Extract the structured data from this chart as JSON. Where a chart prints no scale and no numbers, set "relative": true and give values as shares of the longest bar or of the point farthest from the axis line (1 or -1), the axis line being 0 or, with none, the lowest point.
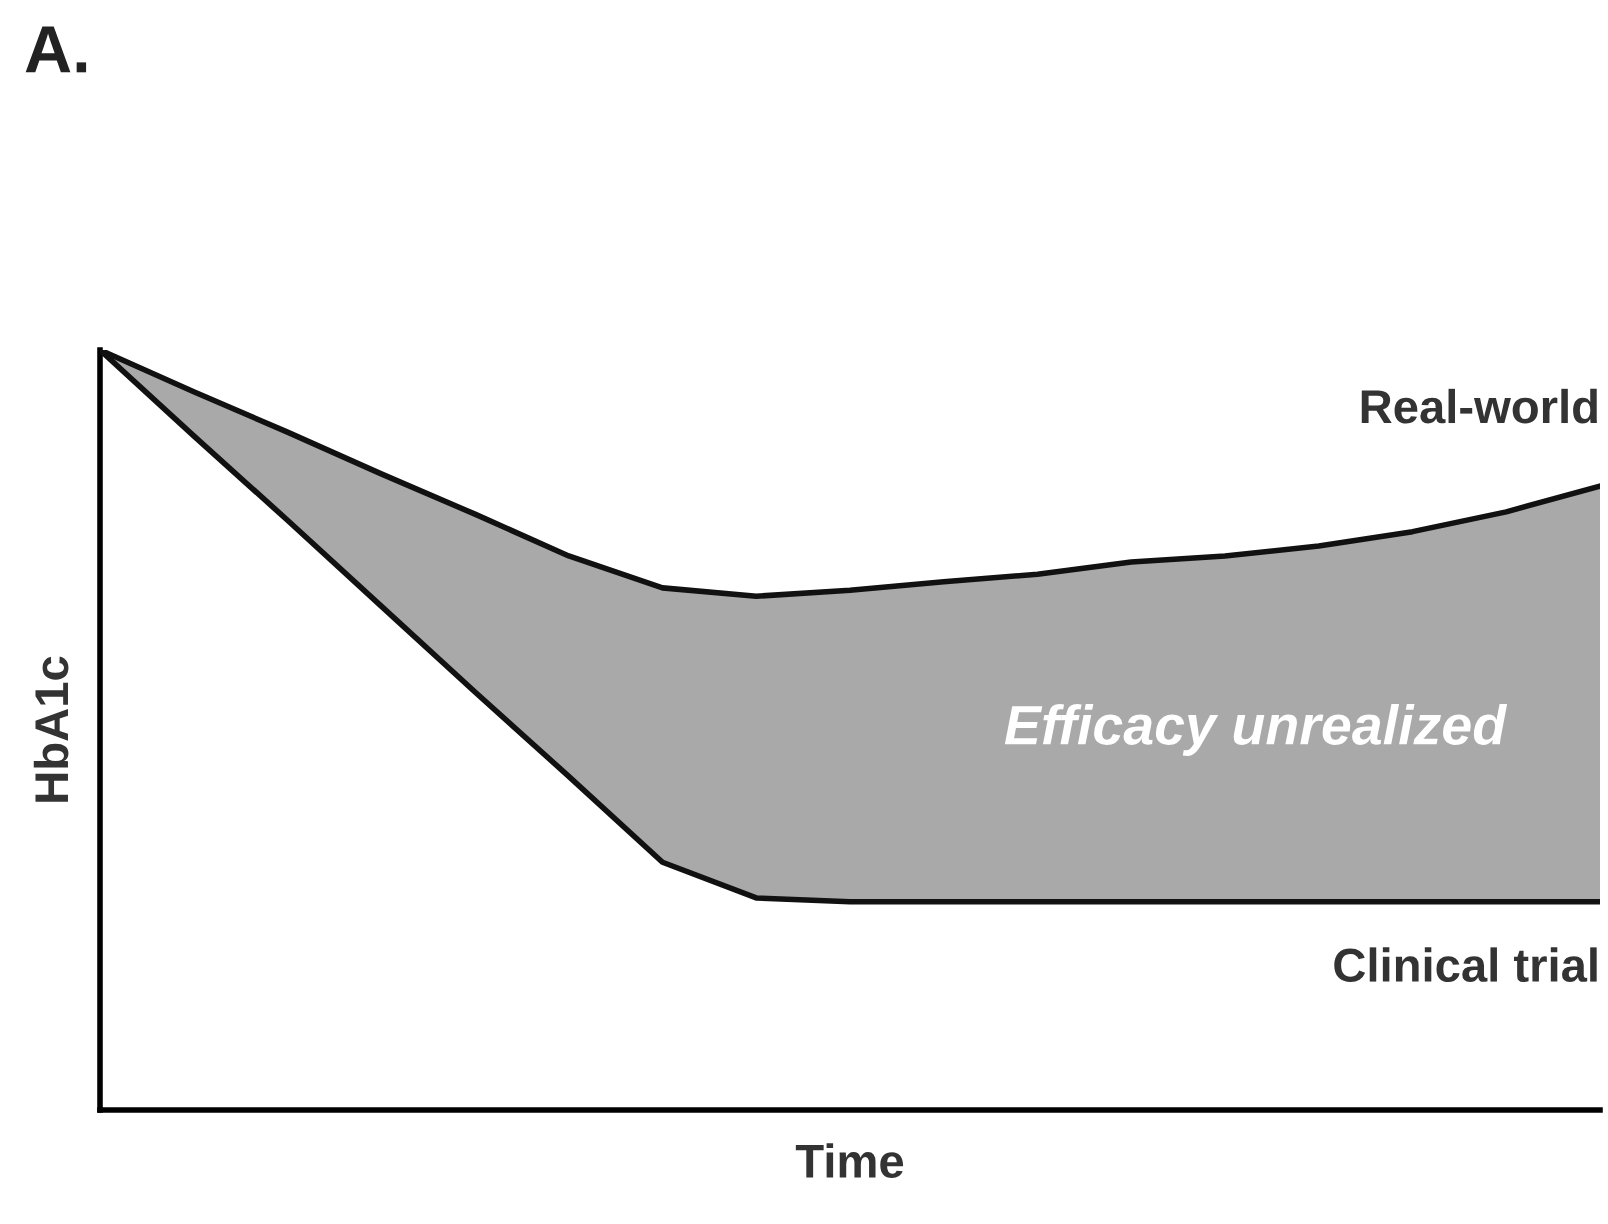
{
  "chart_data": {
    "type": "area",
    "title": "A.",
    "xlabel": "Time",
    "ylabel": "HbA1c",
    "relative": true,
    "stacked": true,
    "categories": [
      null,
      null,
      null,
      null,
      null,
      null,
      null,
      null,
      null,
      null,
      null,
      null,
      null,
      null,
      null,
      null,
      null
    ],
    "series": [
      {
        "name": "Clinical trial",
        "color": "#ffffff",
        "values": [
          1,
          0.887,
          0.776,
          0.663,
          0.55,
          0.439,
          0.326,
          0.279,
          0.274,
          0.274,
          0.274,
          0.274,
          0.274,
          0.274,
          0.274,
          0.274,
          0.274
        ]
      },
      {
        "name": "Real-world",
        "color": "#a9a9a9",
        "values": [
          0,
          0.058,
          0.116,
          0.174,
          0.234,
          0.29,
          0.361,
          0.397,
          0.41,
          0.421,
          0.431,
          0.447,
          0.455,
          0.468,
          0.487,
          0.513,
          0.547
        ]
      }
    ],
    "annotations": [
      "Efficacy unrealized"
    ]
  }
}
